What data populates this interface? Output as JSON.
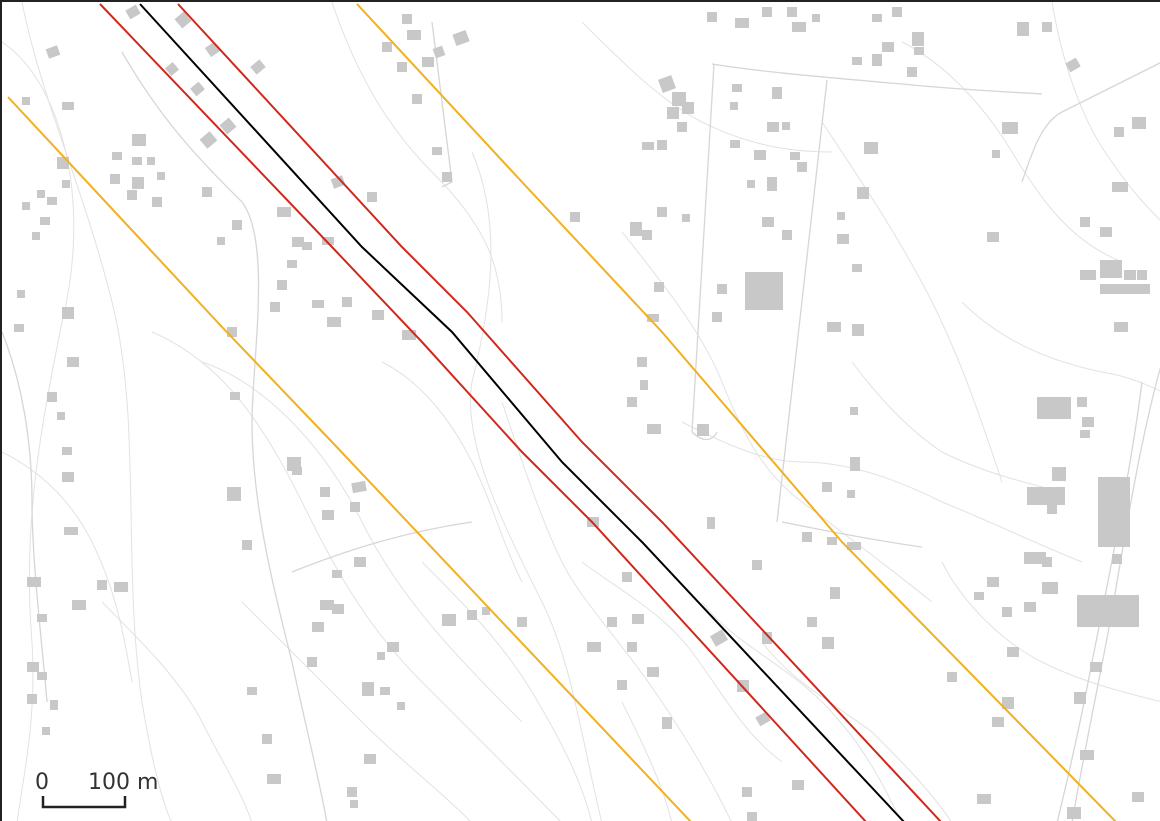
{
  "map": {
    "colors": {
      "background": "#ffffff",
      "buildings": "#c8c8c8",
      "contours": "#e2e2e2",
      "roads": "#d6d6d6",
      "centerline": "#000000",
      "inner_buffer": "#d0281c",
      "outer_buffer": "#f0b020",
      "frame": "#222222"
    },
    "layers": [
      "contour-lines",
      "roads",
      "buildings",
      "outer-buffer",
      "inner-buffer",
      "centerline"
    ]
  },
  "scale_bar": {
    "zero_label": "0",
    "distance_label": "100 m"
  }
}
